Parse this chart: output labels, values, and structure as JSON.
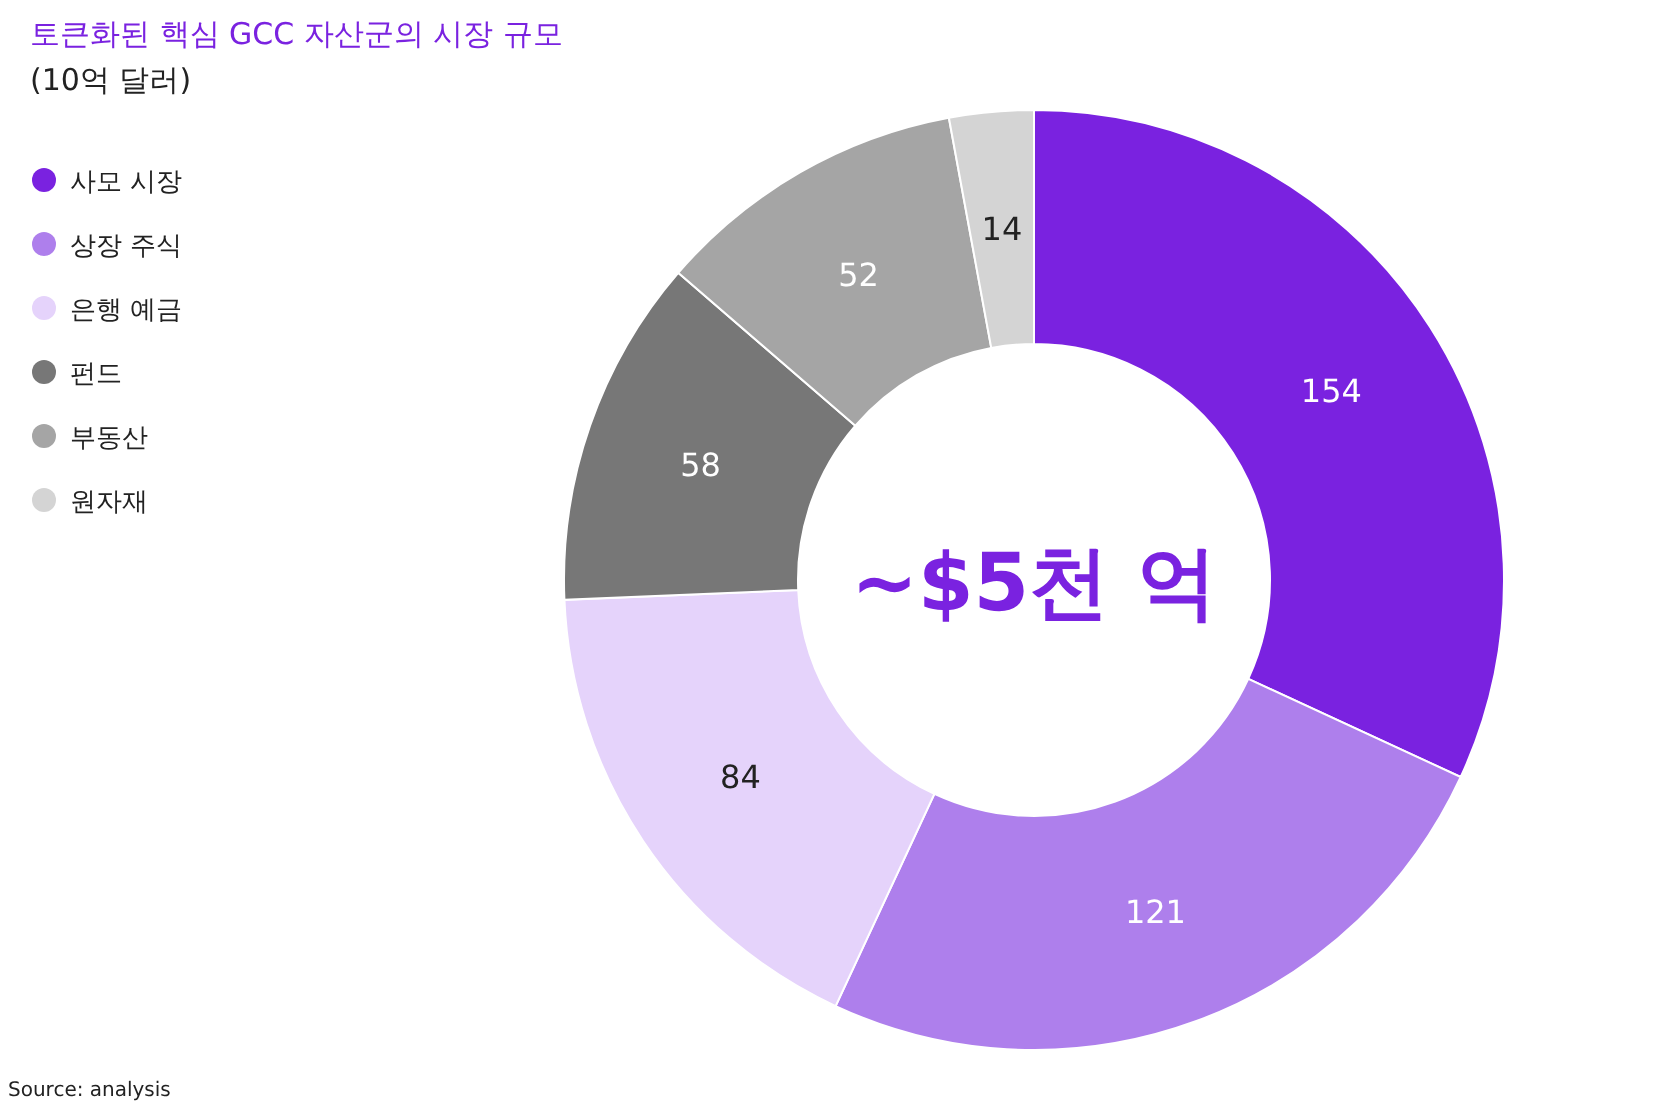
{
  "chart_data": {
    "type": "donut",
    "title": "토큰화된 핵심 GCC 자산군의 시장 규모",
    "subtitle": "(10억 달러)",
    "categories": [
      "사모 시장",
      "상장 주식",
      "은행 예금",
      "펀드",
      "부동산",
      "원자재"
    ],
    "values": [
      154,
      121,
      84,
      58,
      52,
      14
    ],
    "colors": [
      "#7a22e0",
      "#ae7fec",
      "#e5d3fb",
      "#777777",
      "#a5a5a5",
      "#d4d4d4"
    ],
    "data_labels": true,
    "legend": "left",
    "annotations": [
      "~$5천 억",
      "Source: analysis"
    ]
  }
}
